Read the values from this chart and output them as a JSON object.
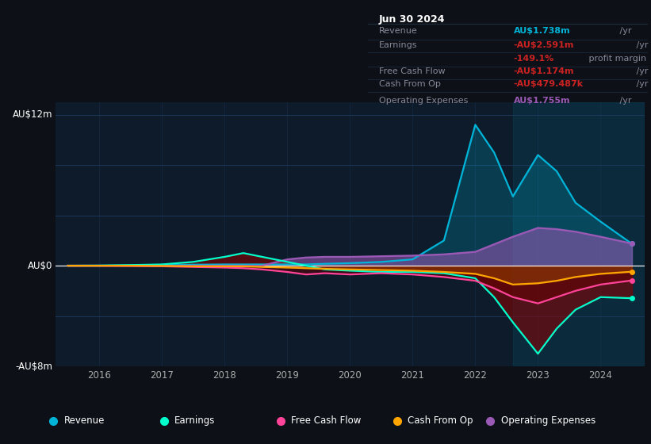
{
  "bg_color": "#0d1117",
  "plot_bg": "#0d1b2a",
  "ylim": [
    -8,
    13
  ],
  "years": [
    2015.5,
    2016.0,
    2016.5,
    2017.0,
    2017.5,
    2018.0,
    2018.3,
    2018.6,
    2019.0,
    2019.3,
    2019.6,
    2020.0,
    2020.5,
    2021.0,
    2021.5,
    2022.0,
    2022.3,
    2022.6,
    2023.0,
    2023.3,
    2023.6,
    2024.0,
    2024.5
  ],
  "revenue": [
    0.0,
    0.02,
    0.03,
    0.05,
    0.08,
    0.1,
    0.1,
    0.1,
    0.1,
    0.1,
    0.15,
    0.2,
    0.3,
    0.5,
    2.0,
    11.2,
    9.0,
    5.5,
    8.8,
    7.5,
    5.0,
    3.5,
    1.738
  ],
  "earnings": [
    0.0,
    0.0,
    0.05,
    0.1,
    0.3,
    0.7,
    1.0,
    0.7,
    0.3,
    0.0,
    -0.3,
    -0.4,
    -0.5,
    -0.5,
    -0.6,
    -1.0,
    -2.5,
    -4.5,
    -7.0,
    -5.0,
    -3.5,
    -2.5,
    -2.591
  ],
  "fcf": [
    0.0,
    0.0,
    -0.02,
    -0.05,
    -0.1,
    -0.15,
    -0.2,
    -0.3,
    -0.5,
    -0.7,
    -0.6,
    -0.7,
    -0.6,
    -0.7,
    -0.9,
    -1.2,
    -1.8,
    -2.5,
    -3.0,
    -2.5,
    -2.0,
    -1.5,
    -1.174
  ],
  "cashfromop": [
    0.0,
    0.0,
    0.0,
    -0.02,
    -0.05,
    -0.05,
    -0.05,
    -0.1,
    -0.15,
    -0.2,
    -0.25,
    -0.3,
    -0.35,
    -0.4,
    -0.5,
    -0.65,
    -1.0,
    -1.5,
    -1.4,
    -1.2,
    -0.9,
    -0.65,
    -0.4794
  ],
  "opex": [
    0.0,
    0.0,
    0.0,
    0.0,
    0.0,
    0.0,
    0.0,
    0.0,
    0.5,
    0.65,
    0.7,
    0.7,
    0.75,
    0.8,
    0.9,
    1.1,
    1.7,
    2.3,
    3.0,
    2.9,
    2.7,
    2.3,
    1.755
  ],
  "revenue_color": "#00b4d8",
  "earnings_color": "#00ffcc",
  "fcf_color": "#ff4499",
  "cashfromop_color": "#ffa500",
  "opex_color": "#9b59b6",
  "info_box": {
    "title": "Jun 30 2024",
    "rows": [
      {
        "label": "Revenue",
        "value": "AU$1.738m",
        "suffix": " /yr",
        "value_color": "#00b4d8",
        "extra": null
      },
      {
        "label": "Earnings",
        "value": "-AU$2.591m",
        "suffix": " /yr",
        "value_color": "#cc2222",
        "extra": "-149.1%",
        "extra_suffix": " profit margin",
        "extra_color": "#cc2222"
      },
      {
        "label": "Free Cash Flow",
        "value": "-AU$1.174m",
        "suffix": " /yr",
        "value_color": "#cc2222",
        "extra": null
      },
      {
        "label": "Cash From Op",
        "value": "-AU$479.487k",
        "suffix": " /yr",
        "value_color": "#cc2222",
        "extra": null
      },
      {
        "label": "Operating Expenses",
        "value": "AU$1.755m",
        "suffix": " /yr",
        "value_color": "#9b59b6",
        "extra": null
      }
    ]
  },
  "legend": [
    {
      "label": "Revenue",
      "color": "#00b4d8"
    },
    {
      "label": "Earnings",
      "color": "#00ffcc"
    },
    {
      "label": "Free Cash Flow",
      "color": "#ff4499"
    },
    {
      "label": "Cash From Op",
      "color": "#ffa500"
    },
    {
      "label": "Operating Expenses",
      "color": "#9b59b6"
    }
  ]
}
